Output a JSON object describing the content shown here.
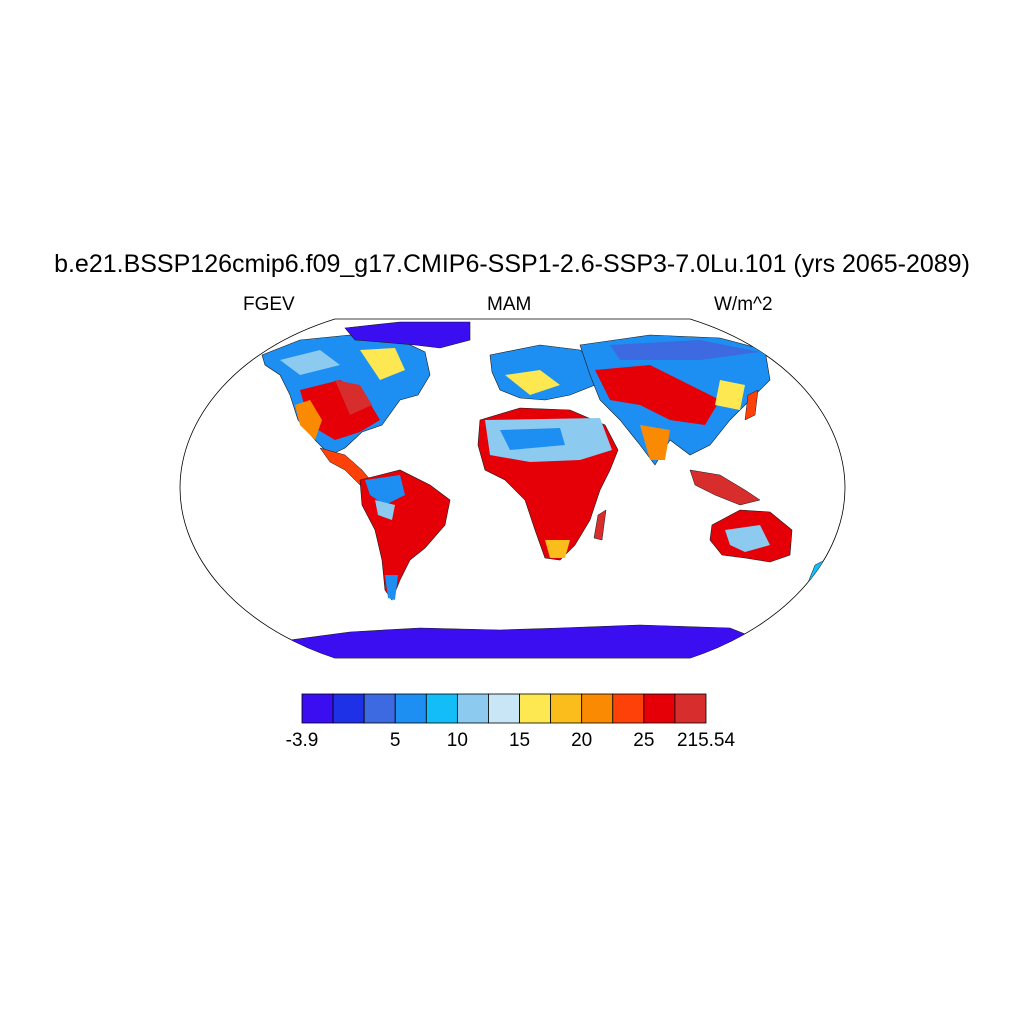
{
  "title": "b.e21.BSSP126cmip6.f09_g17.CMIP6-SSP1-2.6-SSP3-7.0Lu.101 (yrs 2065-2089)",
  "left_label": "FGEV",
  "center_label": "MAM",
  "right_label": "W/m^2",
  "colorbar": {
    "colors": [
      "#3b0ef2",
      "#1f31e6",
      "#3d6ae0",
      "#1d8ff2",
      "#13bdf8",
      "#8ccbef",
      "#c9e6f7",
      "#fde851",
      "#fbbd1c",
      "#fb8a03",
      "#fe4109",
      "#e50008",
      "#d72d2d"
    ],
    "labels": [
      "-3.9",
      "5",
      "10",
      "15",
      "20",
      "25",
      "215.54"
    ]
  }
}
